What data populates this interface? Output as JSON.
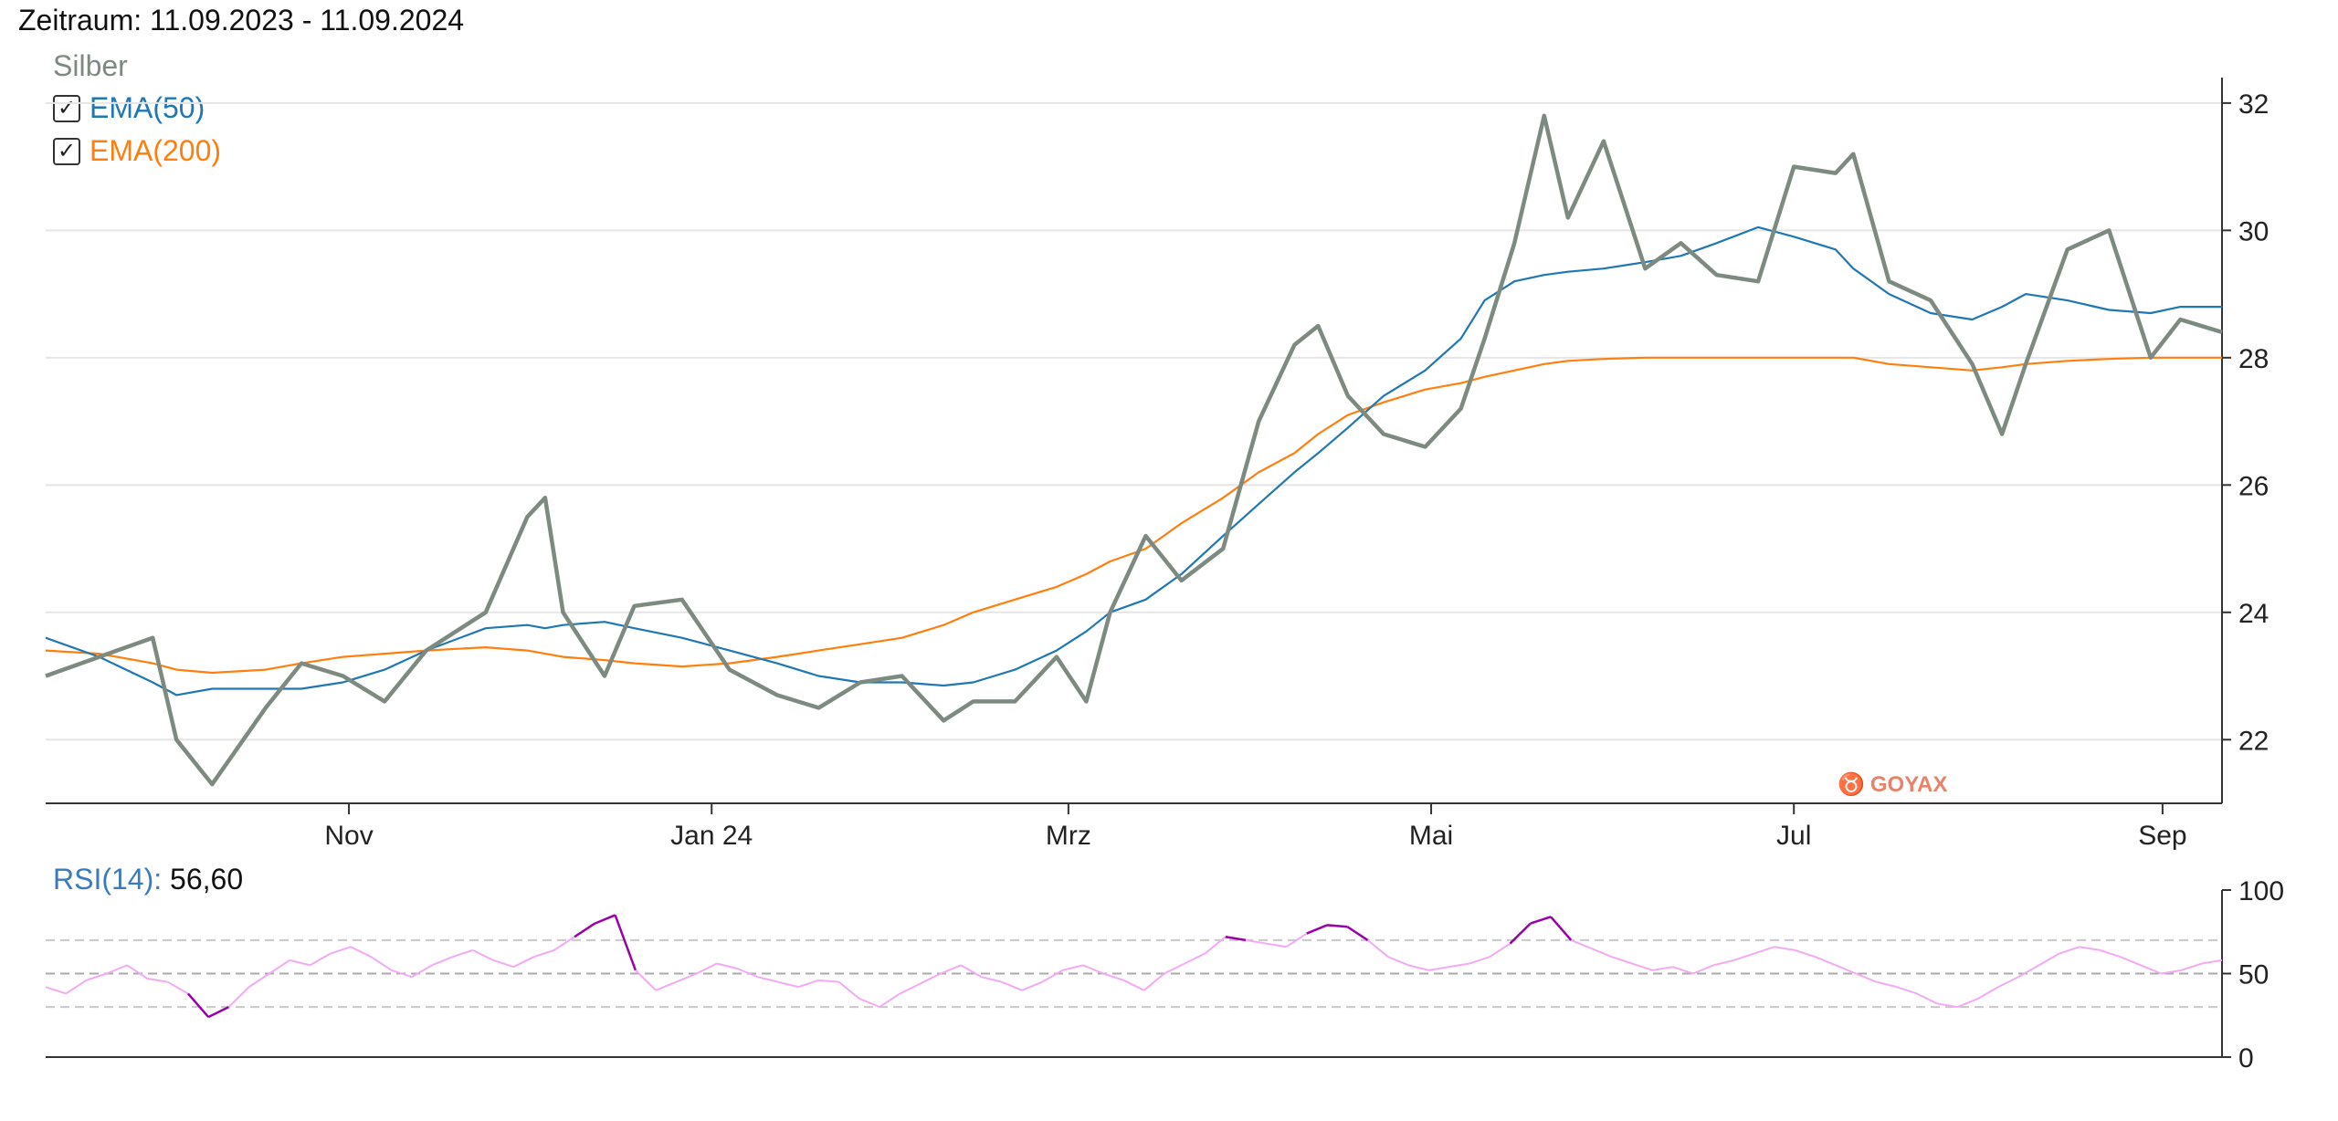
{
  "header": {
    "title": "Zeitraum: 11.09.2023 - 11.09.2024"
  },
  "legend": {
    "instrument": "Silber",
    "items": [
      {
        "label": "EMA(50)",
        "checked": true,
        "color": "#1f77b4"
      },
      {
        "label": "EMA(200)",
        "checked": true,
        "color": "#ff7f0e"
      }
    ]
  },
  "rsi": {
    "label": "RSI(14):",
    "value": "56,60",
    "color": "#3a7bbf"
  },
  "logo": {
    "text": "GOYAX"
  },
  "colors": {
    "price": "#7d8a80",
    "ema50": "#1f77b4",
    "ema200": "#ff7f0e",
    "rsi_normal": "#f2aaf2",
    "rsi_extreme": "#9900aa",
    "grid": "#e5e5e5"
  },
  "chart_data": [
    {
      "type": "line",
      "title": "Silber",
      "ylim": [
        21,
        32.4
      ],
      "y_ticks": [
        "32",
        "30",
        "28",
        "26",
        "24",
        "22"
      ],
      "x_ticks": [
        "Nov",
        "Jan 24",
        "Mrz",
        "Mai",
        "Jul",
        "Sep"
      ],
      "x": [
        "2023-09-11",
        "2023-09-20",
        "2023-09-29",
        "2023-10-03",
        "2023-10-09",
        "2023-10-18",
        "2023-10-24",
        "2023-10-31",
        "2023-11-07",
        "2023-11-14",
        "2023-11-24",
        "2023-12-01",
        "2023-12-04",
        "2023-12-07",
        "2023-12-14",
        "2023-12-19",
        "2023-12-27",
        "2024-01-04",
        "2024-01-12",
        "2024-01-19",
        "2024-01-26",
        "2024-02-02",
        "2024-02-09",
        "2024-02-14",
        "2024-02-21",
        "2024-02-28",
        "2024-03-04",
        "2024-03-08",
        "2024-03-14",
        "2024-03-20",
        "2024-03-27",
        "2024-04-02",
        "2024-04-08",
        "2024-04-12",
        "2024-04-17",
        "2024-04-23",
        "2024-04-30",
        "2024-05-06",
        "2024-05-10",
        "2024-05-15",
        "2024-05-20",
        "2024-05-24",
        "2024-05-30",
        "2024-06-06",
        "2024-06-12",
        "2024-06-18",
        "2024-06-25",
        "2024-07-01",
        "2024-07-08",
        "2024-07-11",
        "2024-07-17",
        "2024-07-24",
        "2024-07-31",
        "2024-08-05",
        "2024-08-09",
        "2024-08-16",
        "2024-08-23",
        "2024-08-30",
        "2024-09-04",
        "2024-09-11"
      ],
      "series": [
        {
          "name": "Silber",
          "values": [
            23.0,
            23.3,
            23.6,
            22.0,
            21.3,
            22.5,
            23.2,
            23.0,
            22.6,
            23.4,
            24.0,
            25.5,
            25.8,
            24.0,
            23.0,
            24.1,
            24.2,
            23.1,
            22.7,
            22.5,
            22.9,
            23.0,
            22.3,
            22.6,
            22.6,
            23.3,
            22.6,
            24.0,
            25.2,
            24.5,
            25.0,
            27.0,
            28.2,
            28.5,
            27.4,
            26.8,
            26.6,
            27.2,
            28.3,
            29.8,
            31.8,
            30.2,
            31.4,
            29.4,
            29.8,
            29.3,
            29.2,
            31.0,
            30.9,
            31.2,
            29.2,
            28.9,
            27.9,
            26.8,
            27.9,
            29.7,
            30.0,
            28.0,
            28.6,
            28.4
          ]
        },
        {
          "name": "EMA(50)",
          "values": [
            23.6,
            23.3,
            22.9,
            22.7,
            22.8,
            22.8,
            22.8,
            22.9,
            23.1,
            23.4,
            23.75,
            23.8,
            23.75,
            23.8,
            23.85,
            23.75,
            23.6,
            23.4,
            23.2,
            23.0,
            22.9,
            22.9,
            22.85,
            22.9,
            23.1,
            23.4,
            23.7,
            24.0,
            24.2,
            24.6,
            25.2,
            25.7,
            26.2,
            26.5,
            26.9,
            27.4,
            27.8,
            28.3,
            28.9,
            29.2,
            29.3,
            29.35,
            29.4,
            29.5,
            29.6,
            29.8,
            30.05,
            29.9,
            29.7,
            29.4,
            29.0,
            28.7,
            28.6,
            28.8,
            29.0,
            28.9,
            28.75,
            28.7,
            28.8,
            28.8
          ]
        },
        {
          "name": "EMA(200)",
          "values": [
            23.4,
            23.35,
            23.2,
            23.1,
            23.05,
            23.1,
            23.2,
            23.3,
            23.35,
            23.4,
            23.45,
            23.4,
            23.35,
            23.3,
            23.25,
            23.2,
            23.15,
            23.2,
            23.3,
            23.4,
            23.5,
            23.6,
            23.8,
            24.0,
            24.2,
            24.4,
            24.6,
            24.8,
            25.0,
            25.4,
            25.8,
            26.2,
            26.5,
            26.8,
            27.1,
            27.3,
            27.5,
            27.6,
            27.7,
            27.8,
            27.9,
            27.95,
            27.98,
            28.0,
            28.0,
            28.0,
            28.0,
            28.0,
            28.0,
            28.0,
            27.9,
            27.85,
            27.8,
            27.85,
            27.9,
            27.95,
            27.98,
            28.0,
            28.0,
            28.0
          ]
        }
      ]
    },
    {
      "type": "line",
      "title": "RSI(14)",
      "ylim": [
        0,
        100
      ],
      "y_ticks": [
        "100",
        "50",
        "0"
      ],
      "reference_lines": [
        30,
        50,
        70
      ],
      "current_value": 56.6,
      "series": [
        {
          "name": "RSI(14)",
          "values": [
            42,
            38,
            46,
            50,
            55,
            47,
            45,
            38,
            24,
            30,
            42,
            50,
            58,
            55,
            62,
            66,
            60,
            52,
            48,
            55,
            60,
            64,
            58,
            54,
            60,
            64,
            72,
            80,
            85,
            52,
            40,
            45,
            50,
            56,
            53,
            48,
            45,
            42,
            46,
            45,
            35,
            30,
            38,
            44,
            50,
            55,
            48,
            45,
            40,
            45,
            52,
            55,
            50,
            46,
            40,
            50,
            56,
            62,
            72,
            70,
            68,
            66,
            74,
            79,
            78,
            70,
            60,
            55,
            52,
            54,
            56,
            60,
            68,
            80,
            84,
            70,
            65,
            60,
            56,
            52,
            54,
            50,
            55,
            58,
            62,
            66,
            64,
            60,
            55,
            50,
            45,
            42,
            38,
            32,
            30,
            35,
            42,
            48,
            55,
            62,
            66,
            64,
            60,
            55,
            50,
            52,
            56,
            58
          ]
        }
      ]
    }
  ]
}
